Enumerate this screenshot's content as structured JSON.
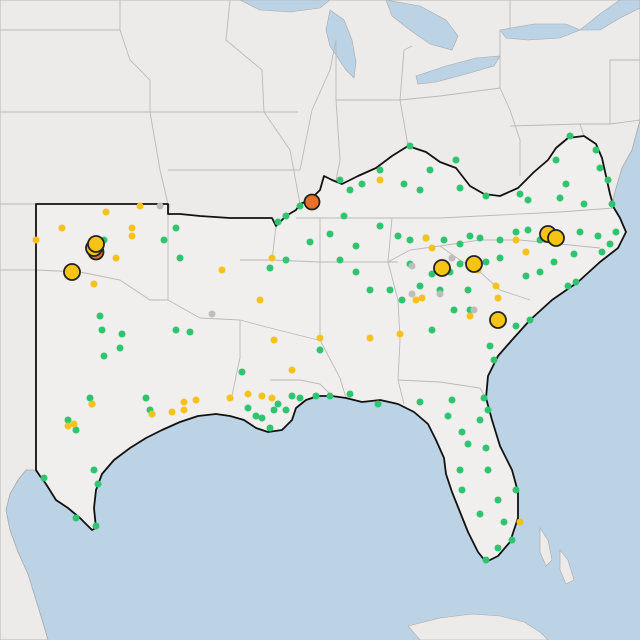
{
  "map": {
    "colors": {
      "water": "#bcd3e6",
      "land": "#ecebea",
      "region_fill": "#f1efed",
      "state_border": "#b9b9b9",
      "region_border": "#111111",
      "coast": "#a7a7a7"
    },
    "marker_categories": [
      {
        "key": "green",
        "color": "#2fc46f"
      },
      {
        "key": "yellow",
        "color": "#f4c21a"
      },
      {
        "key": "gray",
        "color": "#bdbdbd"
      },
      {
        "key": "orange",
        "color": "#e8702a"
      },
      {
        "key": "highlight",
        "color": "#f7c416"
      }
    ]
  }
}
